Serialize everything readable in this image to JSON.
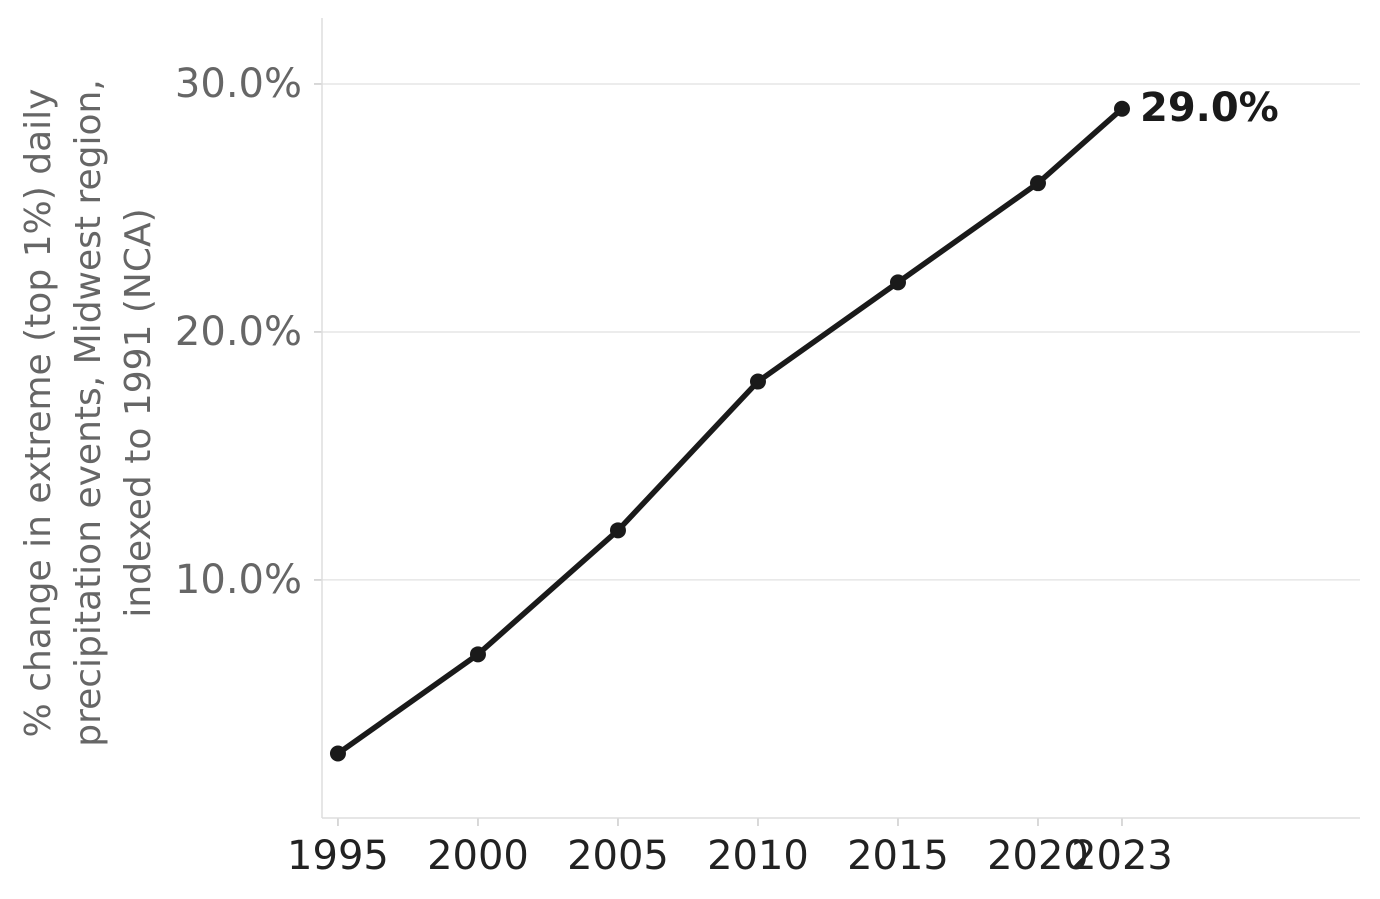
{
  "chart_data": {
    "type": "line",
    "ylabel": [
      "% change in extreme (top 1%) daily",
      "precipitation events, Midwest region,",
      "indexed to 1991 (NCA)"
    ],
    "x": [
      1995,
      2000,
      2005,
      2010,
      2015,
      2020,
      2023
    ],
    "series": [
      {
        "color": "#1a1a1a",
        "values": [
          3.0,
          7.0,
          12.0,
          18.0,
          22.0,
          26.0,
          29.0
        ],
        "value_labels": [
          null,
          null,
          null,
          null,
          null,
          null,
          "29.0%"
        ]
      }
    ],
    "xlim": [
      1994.43,
      2031.5
    ],
    "xticks": [
      1995,
      2000,
      2005,
      2010,
      2015,
      2020,
      2023
    ],
    "ylim": [
      0.4,
      32.66
    ],
    "yticks": [
      {
        "value": 10,
        "label": "10.0%"
      },
      {
        "value": 20,
        "label": "20.0%"
      },
      {
        "value": 30,
        "label": "30.0%"
      }
    ],
    "grid": true
  }
}
